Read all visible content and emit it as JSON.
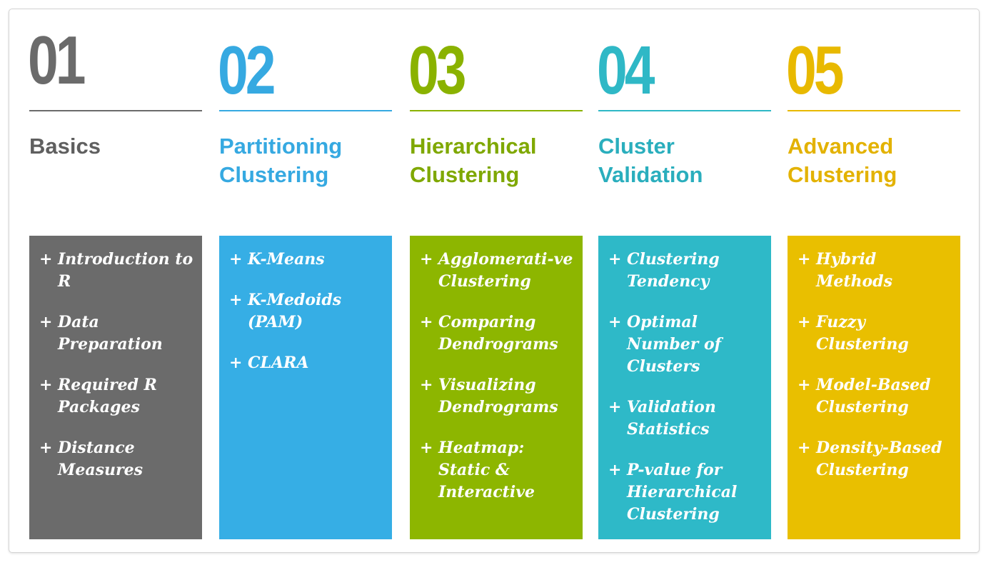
{
  "colors": {
    "basics": "#6b6b6b",
    "partitioning": "#36a9e1",
    "hierarchical": "#8ab200",
    "validation": "#2fb8c6",
    "advanced": "#e8b900"
  },
  "bullet_symbol": "+",
  "columns": [
    {
      "number": "01",
      "title": "Basics",
      "items": [
        "Introduction to R",
        "Data Preparation",
        "Required R Packages",
        "Distance Measures"
      ]
    },
    {
      "number": "02",
      "title": "Partitioning Clustering",
      "items": [
        "K-Means",
        "K-Medoids (PAM)",
        "CLARA"
      ]
    },
    {
      "number": "03",
      "title": "Hierarchical Clustering",
      "items": [
        "Agglomerati-ve Clustering",
        "Comparing Dendrograms",
        "Visualizing Dendrograms",
        "Heatmap: Static & Interactive"
      ]
    },
    {
      "number": "04",
      "title": "Cluster Validation",
      "items": [
        "Clustering Tendency",
        "Optimal Number of Clusters",
        "Validation Statistics",
        "P-value for Hierarchical Clustering"
      ]
    },
    {
      "number": "05",
      "title": "Advanced Clustering",
      "items": [
        "Hybrid Methods",
        "Fuzzy Clustering",
        "Model-Based Clustering",
        "Density-Based Clustering"
      ]
    }
  ]
}
